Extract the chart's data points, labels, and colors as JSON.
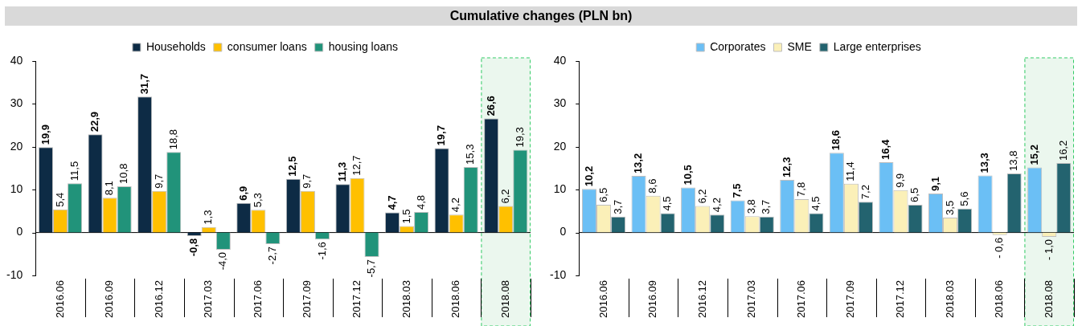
{
  "chart_data": [
    {
      "type": "bar",
      "title": "Cumulative changes (PLN bn)",
      "categories": [
        "2016.06",
        "2016.09",
        "2016.12",
        "2017.03",
        "2017.06",
        "2017.09",
        "2017.12",
        "2018.03",
        "2018.06",
        "2018.08"
      ],
      "series": [
        {
          "name": "Households",
          "color": "#0d2b45",
          "values": [
            19.9,
            22.9,
            31.7,
            -0.8,
            6.9,
            12.5,
            11.3,
            4.7,
            19.7,
            26.6
          ],
          "value_labels": [
            "19,9",
            "22,9",
            "31,7",
            "-0,8",
            "6,9",
            "12,5",
            "11,3",
            "4,7",
            "19,7",
            "26,6"
          ]
        },
        {
          "name": "consumer loans",
          "color": "#ffc000",
          "values": [
            5.4,
            8.1,
            9.7,
            1.3,
            5.3,
            9.7,
            12.7,
            1.5,
            4.2,
            6.2
          ],
          "value_labels": [
            "5,4",
            "8,1",
            "9,7",
            "1,3",
            "5,3",
            "9,7",
            "12,7",
            "1,5",
            "4,2",
            "6,2"
          ]
        },
        {
          "name": "housing loans",
          "color": "#21937a",
          "values": [
            11.5,
            10.8,
            18.8,
            -4.0,
            -2.7,
            -1.6,
            -5.7,
            4.8,
            15.3,
            19.3
          ],
          "value_labels": [
            "11,5",
            "10,8",
            "18,8",
            "-4,0",
            "-2,7",
            "-1,6",
            "-5,7",
            "4,8",
            "15,3",
            "19,3"
          ]
        }
      ],
      "ylim": [
        -10,
        40
      ],
      "yticks": [
        -10,
        0,
        10,
        20,
        30,
        40
      ],
      "grid": false,
      "legend": "top",
      "ref_lines": [
        {
          "axis": "y",
          "value": 0,
          "color": "#000000"
        }
      ],
      "bands": [
        {
          "axis": "x",
          "from": "2018.08",
          "to": "2018.08",
          "color": "#ebf7ee"
        }
      ]
    },
    {
      "type": "bar",
      "categories": [
        "2016.06",
        "2016.09",
        "2016.12",
        "2017.03",
        "2017.06",
        "2017.09",
        "2017.12",
        "2018.03",
        "2018.06",
        "2018.08"
      ],
      "series": [
        {
          "name": "Corporates",
          "color": "#6bbff5",
          "values": [
            10.2,
            13.2,
            10.5,
            7.5,
            12.3,
            18.6,
            16.4,
            9.1,
            13.3,
            15.2
          ],
          "value_labels": [
            "10,2",
            "13,2",
            "10,5",
            "7,5",
            "12,3",
            "18,6",
            "16,4",
            "9,1",
            "13,3",
            "15,2"
          ]
        },
        {
          "name": "SME",
          "color": "#fbf0b8",
          "values": [
            6.5,
            8.6,
            6.2,
            3.8,
            7.8,
            11.4,
            9.9,
            3.5,
            -0.6,
            -1.0
          ],
          "value_labels": [
            "6,5",
            "8,6",
            "6,2",
            "3,8",
            "7,8",
            "11,4",
            "9,9",
            "3,5",
            "- 0,6",
            "- 1,0"
          ]
        },
        {
          "name": "Large enterprises",
          "color": "#23636f",
          "values": [
            3.7,
            4.5,
            4.2,
            3.7,
            4.5,
            7.2,
            6.5,
            5.6,
            13.8,
            16.2
          ],
          "value_labels": [
            "3,7",
            "4,5",
            "4,2",
            "3,7",
            "4,5",
            "7,2",
            "6,5",
            "5,6",
            "13,8",
            "16,2"
          ]
        }
      ],
      "ylim": [
        -10,
        40
      ],
      "yticks": [
        -10,
        0,
        10,
        20,
        30,
        40
      ],
      "grid": false,
      "legend": "top",
      "ref_lines": [
        {
          "axis": "y",
          "value": 0,
          "color": "#000000"
        }
      ],
      "bands": [
        {
          "axis": "x",
          "from": "2018.08",
          "to": "2018.08",
          "color": "#ebf7ee"
        }
      ]
    }
  ]
}
